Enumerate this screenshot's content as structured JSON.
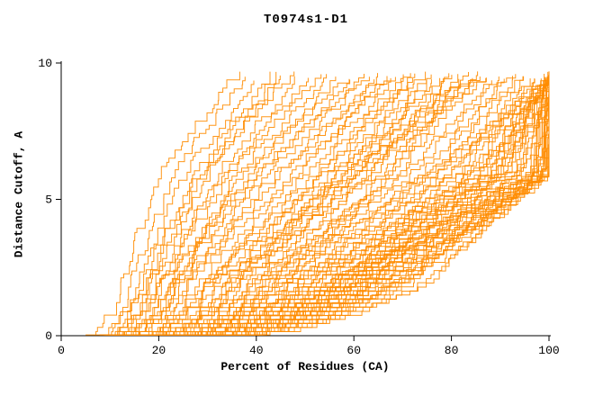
{
  "chart_data": {
    "type": "line",
    "title": "T0974s1-D1",
    "xlabel": "Percent of Residues (CA)",
    "ylabel": "Distance Cutoff, A",
    "xlim": [
      0,
      100
    ],
    "ylim": [
      0,
      10
    ],
    "x_ticks": [
      0,
      20,
      40,
      60,
      80,
      100
    ],
    "y_ticks": [
      0,
      5,
      10
    ],
    "grid": false,
    "legend": false,
    "line_color": "#ff8c00",
    "axis_color": "#000000",
    "y_anchor_levels": [
      0,
      2,
      6,
      9.6
    ],
    "curves": [
      [
        6,
        12,
        20,
        36
      ],
      [
        7,
        14,
        23,
        38
      ],
      [
        8,
        15,
        25,
        41
      ],
      [
        9,
        16,
        27,
        43
      ],
      [
        10,
        18,
        30,
        45
      ],
      [
        8,
        17,
        28,
        47
      ],
      [
        11,
        20,
        32,
        49
      ],
      [
        12,
        21,
        34,
        51
      ],
      [
        10,
        19,
        33,
        53
      ],
      [
        13,
        23,
        36,
        55
      ],
      [
        14,
        24,
        38,
        57
      ],
      [
        12,
        22,
        37,
        59
      ],
      [
        15,
        26,
        40,
        60
      ],
      [
        9,
        18,
        29,
        44
      ],
      [
        8,
        20,
        40,
        62
      ],
      [
        10,
        22,
        42,
        63
      ],
      [
        12,
        25,
        45,
        65
      ],
      [
        9,
        24,
        44,
        66
      ],
      [
        14,
        28,
        48,
        67
      ],
      [
        11,
        26,
        47,
        68
      ],
      [
        16,
        30,
        50,
        69
      ],
      [
        13,
        29,
        52,
        70
      ],
      [
        18,
        33,
        54,
        71
      ],
      [
        15,
        31,
        53,
        72
      ],
      [
        20,
        36,
        56,
        73
      ],
      [
        17,
        34,
        57,
        74
      ],
      [
        22,
        38,
        58,
        75
      ],
      [
        19,
        35,
        59,
        76
      ],
      [
        24,
        40,
        60,
        77
      ],
      [
        21,
        37,
        61,
        78
      ],
      [
        26,
        42,
        63,
        79
      ],
      [
        23,
        39,
        64,
        80
      ],
      [
        28,
        44,
        66,
        81
      ],
      [
        25,
        41,
        67,
        82
      ],
      [
        30,
        46,
        68,
        83
      ],
      [
        27,
        43,
        69,
        84
      ],
      [
        12,
        30,
        55,
        85
      ],
      [
        14,
        32,
        58,
        86
      ],
      [
        16,
        34,
        60,
        87
      ],
      [
        18,
        36,
        62,
        88
      ],
      [
        10,
        40,
        70,
        89
      ],
      [
        12,
        42,
        72,
        90
      ],
      [
        14,
        44,
        74,
        91
      ],
      [
        16,
        46,
        76,
        92
      ],
      [
        18,
        48,
        78,
        93
      ],
      [
        20,
        50,
        80,
        94
      ],
      [
        22,
        52,
        82,
        95
      ],
      [
        24,
        54,
        84,
        96
      ],
      [
        26,
        56,
        86,
        97
      ],
      [
        28,
        58,
        88,
        98
      ],
      [
        30,
        60,
        90,
        99
      ],
      [
        11,
        45,
        75,
        100
      ],
      [
        13,
        47,
        77,
        100
      ],
      [
        15,
        49,
        79,
        100
      ],
      [
        17,
        51,
        81,
        100
      ],
      [
        19,
        53,
        83,
        100
      ],
      [
        21,
        55,
        85,
        100
      ],
      [
        23,
        57,
        87,
        100
      ],
      [
        25,
        59,
        89,
        100
      ],
      [
        27,
        61,
        91,
        100
      ],
      [
        29,
        63,
        93,
        100
      ],
      [
        12,
        50,
        85,
        100
      ],
      [
        14,
        52,
        87,
        100
      ],
      [
        16,
        54,
        89,
        100
      ],
      [
        18,
        56,
        91,
        100
      ],
      [
        20,
        58,
        93,
        100
      ],
      [
        22,
        60,
        95,
        100
      ],
      [
        24,
        62,
        96,
        100
      ],
      [
        26,
        64,
        97,
        100
      ],
      [
        28,
        66,
        98,
        100
      ],
      [
        30,
        68,
        99,
        100
      ],
      [
        13,
        55,
        90,
        100
      ],
      [
        15,
        57,
        92,
        100
      ],
      [
        17,
        59,
        94,
        100
      ],
      [
        19,
        61,
        96,
        100
      ],
      [
        21,
        63,
        97,
        100
      ],
      [
        23,
        65,
        98,
        100
      ],
      [
        25,
        67,
        99,
        100
      ],
      [
        27,
        69,
        99,
        100
      ],
      [
        29,
        71,
        100,
        100
      ],
      [
        16,
        60,
        95,
        100
      ],
      [
        18,
        62,
        96,
        100
      ],
      [
        20,
        64,
        97,
        100
      ],
      [
        22,
        66,
        98,
        100
      ],
      [
        24,
        68,
        99,
        100
      ],
      [
        26,
        70,
        99,
        100
      ],
      [
        28,
        72,
        100,
        100
      ],
      [
        30,
        74,
        100,
        100
      ],
      [
        20,
        70,
        98,
        100
      ],
      [
        25,
        75,
        99,
        100
      ]
    ]
  }
}
